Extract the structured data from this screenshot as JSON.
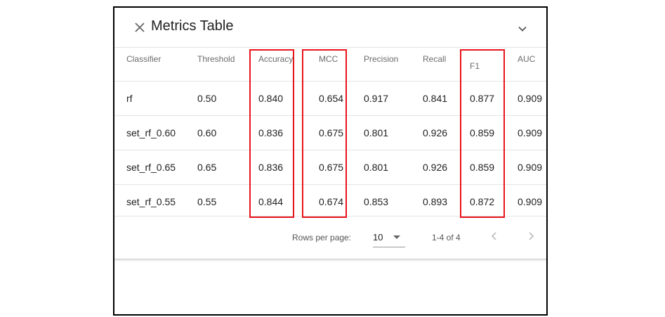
{
  "panel": {
    "title": "Metrics Table"
  },
  "table": {
    "columns": [
      "Classifier",
      "Threshold",
      "Accuracy",
      "MCC",
      "Precision",
      "Recall",
      "F1",
      "AUC"
    ],
    "rows": [
      [
        "rf",
        "0.50",
        "0.840",
        "0.654",
        "0.917",
        "0.841",
        "0.877",
        "0.909"
      ],
      [
        "set_rf_0.60",
        "0.60",
        "0.836",
        "0.675",
        "0.801",
        "0.926",
        "0.859",
        "0.909"
      ],
      [
        "set_rf_0.65",
        "0.65",
        "0.836",
        "0.675",
        "0.801",
        "0.926",
        "0.859",
        "0.909"
      ],
      [
        "set_rf_0.55",
        "0.55",
        "0.844",
        "0.674",
        "0.853",
        "0.893",
        "0.872",
        "0.909"
      ]
    ]
  },
  "pagination": {
    "rows_per_page_label": "Rows per page:",
    "rows_per_page_value": "10",
    "range_label": "1-4 of 4"
  },
  "highlighted_columns": [
    "Accuracy",
    "MCC",
    "F1"
  ],
  "colors": {
    "highlight": "#e8141c",
    "header_text": "#6b6b6b",
    "cell_text": "#212121"
  },
  "icons": {
    "close": "close-icon",
    "collapse": "chevron-down-icon",
    "rows_dropdown": "caret-down-icon",
    "prev_page": "chevron-left-icon",
    "next_page": "chevron-right-icon"
  }
}
